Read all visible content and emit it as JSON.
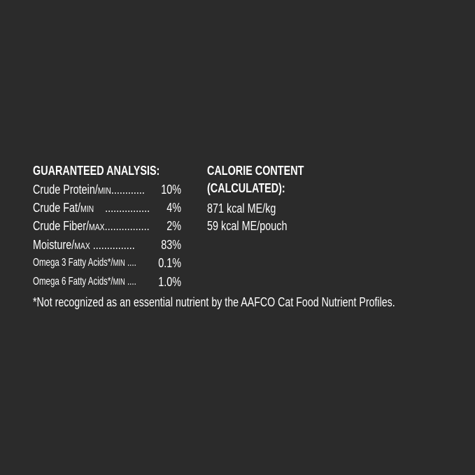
{
  "guaranteed_analysis": {
    "heading": "GUARANTEED ANALYSIS:",
    "rows": [
      {
        "label": "Crude Protein/",
        "qualifier": "MIN",
        "dots": "............",
        "value": "10%"
      },
      {
        "label": "Crude Fat/",
        "qualifier": "MIN",
        "dots": "    ................",
        "value": "4%"
      },
      {
        "label": "Crude Fiber/",
        "qualifier": "MAX",
        "dots": "................",
        "value": "2%"
      },
      {
        "label": "Moisture/",
        "qualifier": "MAX",
        "dots": " ...............",
        "value": "83%"
      },
      {
        "label": "Omega 3 Fatty Acids*/",
        "qualifier": "MIN",
        "dots": " ....",
        "value": "0.1%"
      },
      {
        "label": "Omega 6 Fatty Acids*/",
        "qualifier": "MIN",
        "dots": " ....",
        "value": "1.0%"
      }
    ]
  },
  "calorie_content": {
    "heading_line1": "CALORIE CONTENT",
    "heading_line2": "(CALCULATED):",
    "values": [
      "871 kcal ME/kg",
      "59 kcal ME/pouch"
    ]
  },
  "footnote": "*Not recognized as an essential nutrient by the AAFCO Cat Food Nutrient Profiles."
}
